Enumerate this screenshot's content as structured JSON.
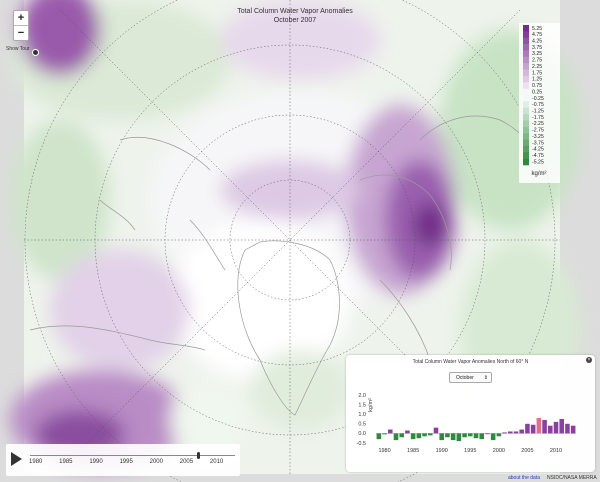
{
  "map": {
    "title": "Total Column Water Vapor Anomalies",
    "subtitle": "October 2007",
    "show_tour": "Show Tour",
    "zoom_in": "+",
    "zoom_out": "−",
    "legend_values": [
      "5.25",
      "4.75",
      "4.25",
      "3.75",
      "3.25",
      "2.75",
      "2.25",
      "1.75",
      "1.25",
      "0.75",
      "0.25",
      "-0.25",
      "-0.75",
      "-1.25",
      "-1.75",
      "-2.25",
      "-2.75",
      "-3.25",
      "-3.75",
      "-4.25",
      "-4.75",
      "-5.25"
    ],
    "legend_unit": "kg/m²",
    "colors": {
      "positive": "#7a2a8f",
      "negative": "#2e8a3c",
      "neutral": "#ffffff",
      "coast": "#9a9a9a"
    }
  },
  "timeline": {
    "years": [
      "1980",
      "1985",
      "1990",
      "1995",
      "2000",
      "2005",
      "2010"
    ],
    "current_year": 2007,
    "first_year": 1979,
    "last_year": 2013
  },
  "panel": {
    "title": "Total Column Water Vapor Anomalies North of 60° N",
    "month": "October"
  },
  "footer": {
    "about": "about the data",
    "credit": "NSIDC/NASA MERRA"
  },
  "chart_data": {
    "type": "bar",
    "title": "Total Column Water Vapor Anomalies North of 60° N",
    "ylabel": "kg/m²",
    "ylim": [
      -0.5,
      2.0
    ],
    "yticks": [
      "2.0",
      "1.5",
      "1.0",
      "0.5",
      "0.0",
      "-0.5"
    ],
    "xticks": [
      "1980",
      "1985",
      "1990",
      "1995",
      "2000",
      "2005",
      "2010"
    ],
    "x": [
      1979,
      1980,
      1981,
      1982,
      1983,
      1984,
      1985,
      1986,
      1987,
      1988,
      1989,
      1990,
      1991,
      1992,
      1993,
      1994,
      1995,
      1996,
      1997,
      1998,
      1999,
      2000,
      2001,
      2002,
      2003,
      2004,
      2005,
      2006,
      2007,
      2008,
      2009,
      2010,
      2011,
      2012,
      2013
    ],
    "values": [
      -0.3,
      -0.05,
      0.2,
      -0.35,
      -0.2,
      0.15,
      -0.3,
      -0.25,
      -0.15,
      -0.1,
      0.3,
      -0.35,
      -0.2,
      -0.35,
      -0.4,
      -0.2,
      -0.15,
      -0.25,
      -0.3,
      0.0,
      -0.35,
      -0.15,
      0.05,
      0.1,
      0.1,
      0.2,
      0.5,
      0.45,
      0.8,
      0.7,
      0.4,
      0.6,
      0.75,
      0.5,
      0.4
    ],
    "colors": {
      "positive": "#8b3fa0",
      "negative": "#2e8a3c",
      "highlight": "#e07090"
    }
  }
}
